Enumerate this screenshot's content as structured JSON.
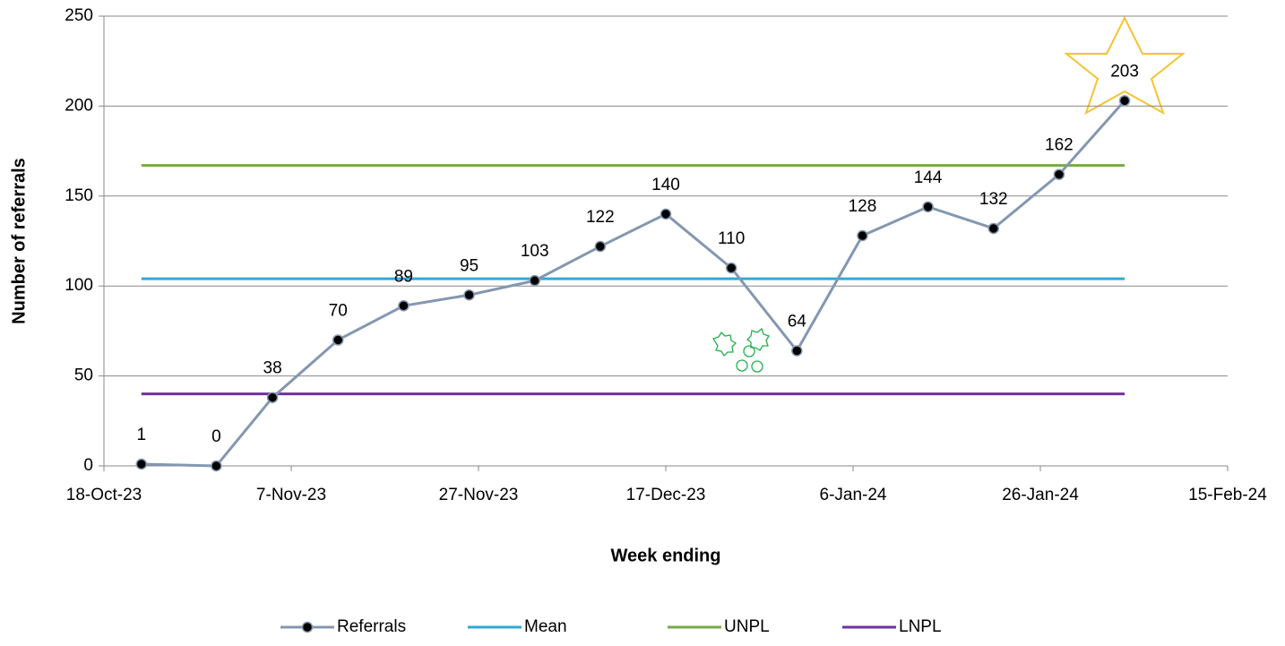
{
  "chart_data": {
    "type": "line",
    "x_label": "Week ending",
    "y_label": "Number of referrals",
    "x": [
      "2023-10-22",
      "2023-10-30",
      "2023-11-05",
      "2023-11-12",
      "2023-11-19",
      "2023-11-26",
      "2023-12-03",
      "2023-12-10",
      "2023-12-17",
      "2023-12-24",
      "2023-12-31",
      "2024-01-07",
      "2024-01-14",
      "2024-01-21",
      "2024-01-28",
      "2024-02-04"
    ],
    "series": [
      {
        "name": "Referrals",
        "color": "#8497b0",
        "markers": true,
        "data_labels": true,
        "values": [
          1,
          0,
          38,
          70,
          89,
          95,
          103,
          122,
          140,
          110,
          64,
          128,
          144,
          132,
          162,
          203
        ]
      },
      {
        "name": "Mean",
        "color": "#31a9d6",
        "values": [
          104,
          104,
          104,
          104,
          104,
          104,
          104,
          104,
          104,
          104,
          104,
          104,
          104,
          104,
          104,
          104
        ]
      },
      {
        "name": "UNPL",
        "color": "#77ab43",
        "values": [
          167,
          167,
          167,
          167,
          167,
          167,
          167,
          167,
          167,
          167,
          167,
          167,
          167,
          167,
          167,
          167
        ]
      },
      {
        "name": "LNPL",
        "color": "#7030a0",
        "values": [
          40,
          40,
          40,
          40,
          40,
          40,
          40,
          40,
          40,
          40,
          40,
          40,
          40,
          40,
          40,
          40
        ]
      }
    ],
    "xlim": [
      "2023-10-18",
      "2024-02-15"
    ],
    "xticks": [
      {
        "value": "2023-10-18",
        "label": "18-Oct-23"
      },
      {
        "value": "2023-11-07",
        "label": "7-Nov-23"
      },
      {
        "value": "2023-11-27",
        "label": "27-Nov-23"
      },
      {
        "value": "2023-12-17",
        "label": "17-Dec-23"
      },
      {
        "value": "2024-01-06",
        "label": "6-Jan-24"
      },
      {
        "value": "2024-01-26",
        "label": "26-Jan-24"
      },
      {
        "value": "2024-02-15",
        "label": "15-Feb-24"
      }
    ],
    "ylim": [
      0,
      250
    ],
    "yticks": [
      0,
      50,
      100,
      150,
      200,
      250
    ],
    "grid": true,
    "legend": "bottom"
  }
}
